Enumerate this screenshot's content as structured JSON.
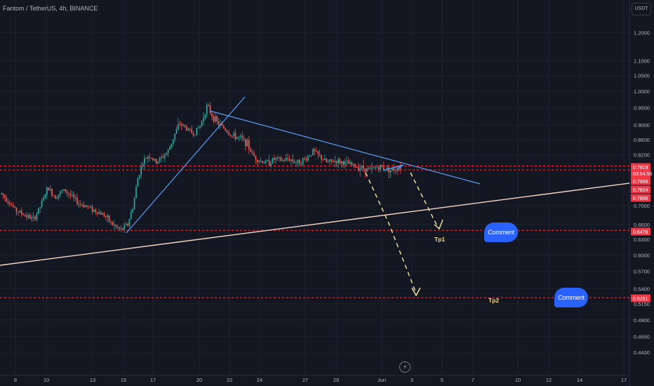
{
  "header": {
    "title": "Fantom / TetherUS, 4h, BINANCE",
    "currency_button": "USDT"
  },
  "chart_data": {
    "type": "candlestick",
    "title": "Fantom / TetherUS, 4h, BINANCE",
    "y_ticks": [
      "1.2000",
      "1.1000",
      "1.0500",
      "1.0000",
      "0.9500",
      "0.9000",
      "0.8600",
      "0.8200",
      "0.7000",
      "0.6600",
      "0.6300",
      "0.6000",
      "0.5700",
      "0.5400",
      "0.5150",
      "0.4900",
      "0.4650",
      "0.4430"
    ],
    "x_ticks": [
      "8",
      "10",
      "13",
      "15",
      "17",
      "20",
      "22",
      "24",
      "27",
      "29",
      "Jun",
      "3",
      "5",
      "7",
      "10",
      "12",
      "14",
      "17"
    ],
    "price_labels": [
      {
        "text": "0.7919",
        "price": 0.7919,
        "color": "#f23645"
      },
      {
        "text": "03:54:56",
        "price": 0.786,
        "color": "#f23645"
      },
      {
        "text": "0.7906",
        "price": 0.772,
        "color": "#f23645"
      },
      {
        "text": "0.7824",
        "price": 0.758,
        "color": "#f23645"
      },
      {
        "text": "0.7806",
        "price": 0.744,
        "color": "#f23645"
      },
      {
        "text": "0.6478",
        "price": 0.6478,
        "color": "#f23645"
      },
      {
        "text": "0.5251",
        "price": 0.5251,
        "color": "#f23645"
      }
    ],
    "horizontal_levels": [
      0.7919,
      0.7824,
      0.6478,
      0.5251
    ],
    "annotations": [
      {
        "text": "Tp1",
        "color": "#f6d985"
      },
      {
        "text": "Tp2",
        "color": "#f6d985"
      }
    ],
    "comments": [
      "Comment",
      "Comment"
    ],
    "colors": {
      "up": "#26a69a",
      "down": "#ef5350",
      "trendline": "#5b9cf6",
      "support": "#f5d6c6",
      "target": "#f6e7a6"
    }
  }
}
